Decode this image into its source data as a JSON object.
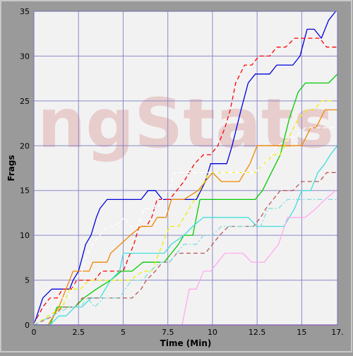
{
  "chart_data": {
    "type": "line",
    "title": "",
    "xlabel": "Time (Min)",
    "ylabel": "Frags",
    "watermark": "ngStats",
    "xlim": [
      0,
      17
    ],
    "ylim": [
      0,
      35
    ],
    "x_ticks": [
      0,
      2.5,
      5,
      7.5,
      10,
      12.5,
      15,
      17
    ],
    "x_tick_labels": [
      "0",
      "2.5",
      "5",
      "7.5",
      "10",
      "12.5",
      "15",
      "17."
    ],
    "y_ticks": [
      0,
      5,
      10,
      15,
      20,
      25,
      30,
      35
    ],
    "y_tick_labels": [
      "0",
      "5",
      "10",
      "15",
      "20",
      "25",
      "30",
      "35"
    ],
    "grid": true,
    "legend": "none",
    "colors": {
      "frame": "#9a9a9a",
      "plot_bg": "#f2f2f2",
      "grid": "#8a8ac8",
      "axis": "#7070b0",
      "watermark": "#d88a8a"
    },
    "series": [
      {
        "color": "#0000dd",
        "dash": "solid",
        "points": [
          [
            0,
            0
          ],
          [
            0.5,
            3
          ],
          [
            1,
            4
          ],
          [
            1.7,
            4
          ],
          [
            2,
            4
          ],
          [
            2.2,
            5
          ],
          [
            2.5,
            6
          ],
          [
            2.9,
            9
          ],
          [
            3.2,
            10
          ],
          [
            3.5,
            12
          ],
          [
            3.7,
            13
          ],
          [
            4.1,
            14
          ],
          [
            6,
            14
          ],
          [
            6.4,
            15
          ],
          [
            6.8,
            15
          ],
          [
            7.2,
            14
          ],
          [
            9.1,
            14
          ],
          [
            9.6,
            16
          ],
          [
            9.9,
            18
          ],
          [
            10.8,
            18
          ],
          [
            11.1,
            20
          ],
          [
            11.6,
            24
          ],
          [
            12,
            27
          ],
          [
            12.4,
            28
          ],
          [
            13.2,
            28
          ],
          [
            13.6,
            29
          ],
          [
            14.5,
            29
          ],
          [
            14.9,
            30
          ],
          [
            15.3,
            33
          ],
          [
            15.7,
            33
          ],
          [
            16.1,
            32
          ],
          [
            16.5,
            34
          ],
          [
            16.9,
            35
          ]
        ]
      },
      {
        "color": "#ff0000",
        "dash": "dashed",
        "points": [
          [
            0,
            0
          ],
          [
            0.5,
            2
          ],
          [
            0.9,
            3
          ],
          [
            1.3,
            3
          ],
          [
            1.6,
            4
          ],
          [
            2.1,
            4
          ],
          [
            2.4,
            5
          ],
          [
            3.4,
            5
          ],
          [
            3.8,
            6
          ],
          [
            4.2,
            6
          ],
          [
            4.7,
            6
          ],
          [
            5,
            6
          ],
          [
            5.6,
            9
          ],
          [
            5.9,
            11
          ],
          [
            6.3,
            11
          ],
          [
            6.6,
            12
          ],
          [
            6.9,
            14
          ],
          [
            7.6,
            14
          ],
          [
            8.4,
            16
          ],
          [
            9,
            18
          ],
          [
            9.5,
            19
          ],
          [
            9.9,
            19
          ],
          [
            10.3,
            20
          ],
          [
            10.7,
            22
          ],
          [
            11,
            24
          ],
          [
            11.3,
            27
          ],
          [
            11.8,
            29
          ],
          [
            12.2,
            29
          ],
          [
            12.6,
            30
          ],
          [
            13.2,
            30
          ],
          [
            13.6,
            31
          ],
          [
            14.1,
            31
          ],
          [
            14.6,
            32
          ],
          [
            16,
            32
          ],
          [
            16.4,
            31
          ],
          [
            17,
            31
          ]
        ]
      },
      {
        "color": "#00cc00",
        "dash": "solid",
        "points": [
          [
            0,
            0
          ],
          [
            0.9,
            0
          ],
          [
            1.3,
            2
          ],
          [
            1.9,
            2
          ],
          [
            2.3,
            2
          ],
          [
            2.8,
            3
          ],
          [
            3.5,
            4
          ],
          [
            4.3,
            5
          ],
          [
            4.9,
            6
          ],
          [
            5.5,
            6
          ],
          [
            6.1,
            7
          ],
          [
            7.3,
            7
          ],
          [
            7.7,
            8
          ],
          [
            8.1,
            9
          ],
          [
            8.4,
            10
          ],
          [
            8.9,
            10
          ],
          [
            9.3,
            14
          ],
          [
            12.4,
            14
          ],
          [
            12.8,
            15
          ],
          [
            13.3,
            17
          ],
          [
            13.8,
            19
          ],
          [
            14.3,
            23
          ],
          [
            14.8,
            26
          ],
          [
            15.2,
            27
          ],
          [
            16.5,
            27
          ],
          [
            17,
            28
          ]
        ]
      },
      {
        "color": "#ee8800",
        "dash": "solid",
        "points": [
          [
            0,
            0
          ],
          [
            0.8,
            0
          ],
          [
            1.4,
            2
          ],
          [
            1.8,
            4
          ],
          [
            2.2,
            6
          ],
          [
            3.1,
            6
          ],
          [
            3.3,
            7
          ],
          [
            4.1,
            7
          ],
          [
            4.3,
            8
          ],
          [
            5.4,
            10
          ],
          [
            6,
            11
          ],
          [
            6.6,
            11
          ],
          [
            6.9,
            12
          ],
          [
            7.4,
            12
          ],
          [
            7.7,
            14
          ],
          [
            8.4,
            14
          ],
          [
            9.2,
            15
          ],
          [
            10,
            17
          ],
          [
            10.5,
            16
          ],
          [
            11.5,
            16
          ],
          [
            12.1,
            18
          ],
          [
            12.5,
            20
          ],
          [
            15,
            20
          ],
          [
            15.5,
            22
          ],
          [
            15.8,
            22
          ],
          [
            16.3,
            24
          ],
          [
            16.7,
            24
          ],
          [
            17,
            24
          ]
        ]
      },
      {
        "color": "#eeee00",
        "dash": "dashed",
        "points": [
          [
            0,
            0
          ],
          [
            1.6,
            2
          ],
          [
            2,
            4
          ],
          [
            2.6,
            4
          ],
          [
            3.1,
            5
          ],
          [
            5,
            5
          ],
          [
            5.4,
            5
          ],
          [
            6.1,
            6
          ],
          [
            6.6,
            6
          ],
          [
            7.2,
            9
          ],
          [
            7.6,
            11
          ],
          [
            8.1,
            11
          ],
          [
            8.7,
            13
          ],
          [
            9.3,
            15
          ],
          [
            9.8,
            17
          ],
          [
            11.3,
            17
          ],
          [
            12.4,
            17
          ],
          [
            12.9,
            18
          ],
          [
            13.4,
            19
          ],
          [
            13.8,
            19
          ],
          [
            14.3,
            21
          ],
          [
            14.8,
            23
          ],
          [
            15.3,
            24
          ],
          [
            15.7,
            24
          ],
          [
            16.1,
            25
          ],
          [
            16.8,
            25
          ]
        ]
      },
      {
        "color": "#ffffff",
        "dash": "dashed",
        "points": [
          [
            0,
            0
          ],
          [
            0.6,
            2
          ],
          [
            1.1,
            2
          ],
          [
            1.5,
            3
          ],
          [
            2,
            3
          ],
          [
            2.3,
            5
          ],
          [
            2.7,
            6
          ],
          [
            3,
            8
          ],
          [
            3.3,
            9
          ],
          [
            3.7,
            10
          ],
          [
            4.1,
            11
          ],
          [
            4.5,
            11
          ],
          [
            5.1,
            12
          ],
          [
            5.4,
            11
          ],
          [
            5.8,
            11
          ],
          [
            6.2,
            13
          ],
          [
            6.9,
            13
          ],
          [
            7.2,
            14
          ],
          [
            7.5,
            15
          ],
          [
            7.9,
            17
          ],
          [
            12.4,
            17
          ],
          [
            12.9,
            18
          ],
          [
            13.3,
            19
          ],
          [
            13.6,
            20
          ],
          [
            14.6,
            21
          ],
          [
            15.2,
            22
          ],
          [
            16.9,
            22
          ]
        ]
      },
      {
        "color": "#40dddd",
        "dash": "solid",
        "points": [
          [
            0,
            0
          ],
          [
            0.9,
            0
          ],
          [
            1.4,
            1
          ],
          [
            1.8,
            1
          ],
          [
            2.3,
            2
          ],
          [
            2.7,
            2
          ],
          [
            3.2,
            3
          ],
          [
            3.7,
            3
          ],
          [
            4.3,
            5
          ],
          [
            4.8,
            6
          ],
          [
            5,
            8
          ],
          [
            6.8,
            8
          ],
          [
            7.3,
            8
          ],
          [
            7.7,
            9
          ],
          [
            8.4,
            10
          ],
          [
            8.9,
            11
          ],
          [
            9.5,
            12
          ],
          [
            12,
            12
          ],
          [
            12.5,
            11
          ],
          [
            14,
            11
          ],
          [
            14.6,
            13
          ],
          [
            15,
            15
          ],
          [
            15.5,
            15
          ],
          [
            15.9,
            17
          ],
          [
            16.3,
            18
          ],
          [
            16.6,
            19
          ],
          [
            17,
            20
          ]
        ]
      },
      {
        "color": "#bb5555",
        "dash": "dashed",
        "points": [
          [
            0,
            0
          ],
          [
            1.1,
            1
          ],
          [
            1.6,
            2
          ],
          [
            2.3,
            2
          ],
          [
            2.7,
            3
          ],
          [
            5.5,
            3
          ],
          [
            6,
            4
          ],
          [
            6.3,
            5
          ],
          [
            6.8,
            6
          ],
          [
            7.2,
            7
          ],
          [
            7.6,
            7
          ],
          [
            8,
            8
          ],
          [
            9.6,
            8
          ],
          [
            10.4,
            10
          ],
          [
            10.9,
            11
          ],
          [
            12.3,
            11
          ],
          [
            12.7,
            12
          ],
          [
            13,
            13
          ],
          [
            13.4,
            14
          ],
          [
            13.8,
            15
          ],
          [
            14.5,
            15
          ],
          [
            15,
            16
          ],
          [
            16,
            16
          ],
          [
            16.4,
            17
          ],
          [
            17,
            17
          ]
        ]
      },
      {
        "color": "#80dddd",
        "dash": "dashdot",
        "points": [
          [
            0,
            0
          ],
          [
            2,
            2
          ],
          [
            2.6,
            2
          ],
          [
            3,
            3
          ],
          [
            3.4,
            2
          ],
          [
            3.9,
            3
          ],
          [
            4.8,
            3
          ],
          [
            5.1,
            4
          ],
          [
            5.5,
            5
          ],
          [
            6.1,
            5
          ],
          [
            6.5,
            6
          ],
          [
            7.1,
            7
          ],
          [
            7.6,
            7
          ],
          [
            8,
            8
          ],
          [
            8.4,
            9
          ],
          [
            9.1,
            9
          ],
          [
            9.5,
            10
          ],
          [
            10,
            10
          ],
          [
            10.5,
            11
          ],
          [
            12.7,
            11
          ],
          [
            13.1,
            13
          ],
          [
            13.7,
            13
          ],
          [
            14.2,
            14
          ],
          [
            17,
            14
          ]
        ]
      },
      {
        "color": "#ffaaee",
        "dash": "solid",
        "points": [
          [
            8.3,
            0
          ],
          [
            8.7,
            4
          ],
          [
            9.1,
            4
          ],
          [
            9.5,
            6
          ],
          [
            9.9,
            6
          ],
          [
            10.3,
            7
          ],
          [
            10.7,
            8
          ],
          [
            11.7,
            8
          ],
          [
            12.2,
            7
          ],
          [
            12.9,
            7
          ],
          [
            13.3,
            8
          ],
          [
            13.7,
            9
          ],
          [
            14.2,
            12
          ],
          [
            15.2,
            12
          ],
          [
            15.8,
            13
          ],
          [
            16.3,
            14
          ],
          [
            16.9,
            15
          ]
        ]
      },
      {
        "color": "#cc00cc",
        "dash": "solid",
        "points": [
          [
            0,
            0
          ],
          [
            17,
            0
          ]
        ]
      }
    ]
  }
}
